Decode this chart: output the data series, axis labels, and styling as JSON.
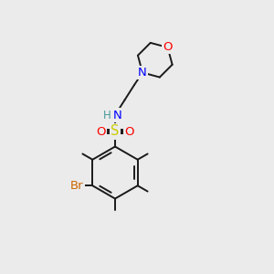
{
  "bg_color": "#ebebeb",
  "bond_color": "#1a1a1a",
  "bond_lw": 1.4,
  "atom_colors": {
    "O": "#ff0000",
    "N": "#0000ff",
    "S": "#cccc00",
    "Br": "#cc6600",
    "H": "#4a9a9a",
    "C": "#1a1a1a"
  },
  "font_size": 9.5,
  "xlim": [
    0,
    10
  ],
  "ylim": [
    0,
    10
  ]
}
